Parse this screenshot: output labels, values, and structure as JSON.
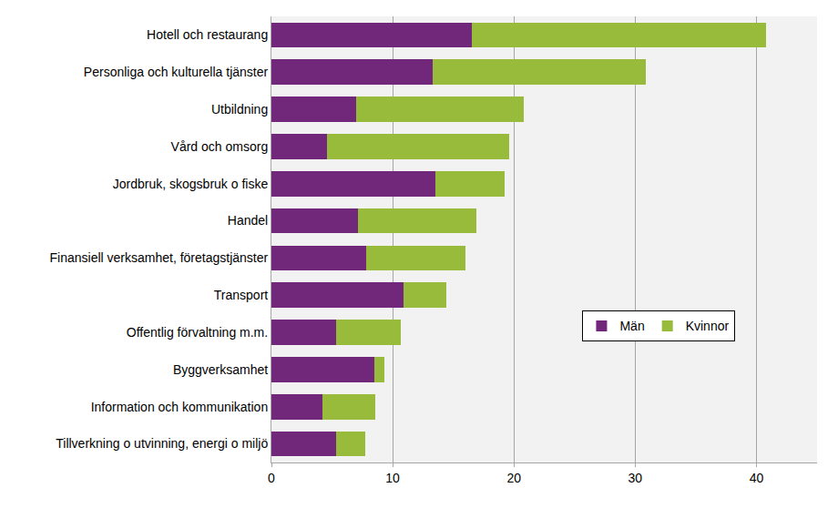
{
  "chart_data": {
    "type": "bar",
    "orientation": "horizontal",
    "stacked": true,
    "grid": true,
    "legend": "right",
    "categories": [
      "Hotell och restaurang",
      "Personliga och kulturella tjänster",
      "Utbildning",
      "Vård och omsorg",
      "Jordbruk, skogsbruk o fiske",
      "Handel",
      "Finansiell verksamhet, företagstjänster",
      "Transport",
      "Offentlig förvaltning m.m.",
      "Byggverksamhet",
      "Information och kommunikation",
      "Tillverkning o utvinning, energi o miljö"
    ],
    "series": [
      {
        "name": "Män",
        "color": "#71277a",
        "values": [
          16.5,
          13.3,
          7.0,
          4.6,
          13.5,
          7.1,
          7.8,
          10.9,
          5.3,
          8.5,
          4.2,
          5.3
        ]
      },
      {
        "name": "Kvinnor",
        "color": "#99bb3b",
        "values": [
          24.3,
          17.6,
          13.8,
          15.0,
          5.7,
          9.8,
          8.2,
          3.5,
          5.4,
          0.8,
          4.4,
          2.4
        ]
      }
    ],
    "xlim": [
      0,
      45
    ],
    "xticks": [
      0,
      10,
      20,
      30,
      40
    ]
  }
}
